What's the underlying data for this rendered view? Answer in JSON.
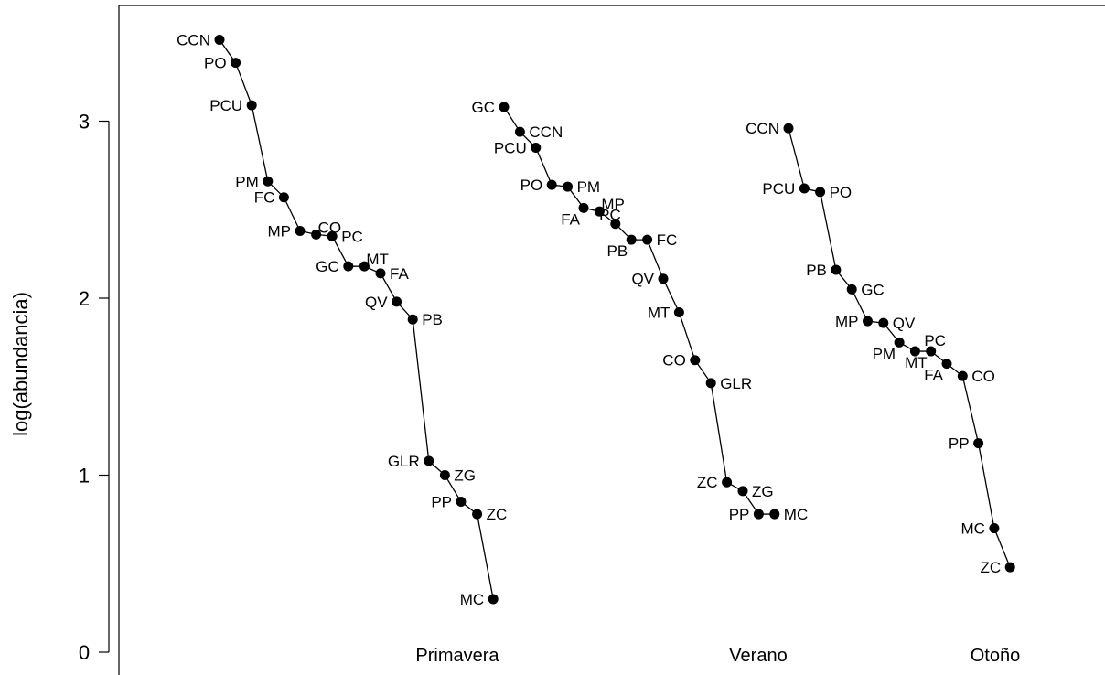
{
  "chart_data": {
    "type": "line",
    "title": "",
    "xlabel": "",
    "ylabel": "log(abundancia)",
    "ylim": [
      0,
      3.5
    ],
    "yticks": [
      0,
      1,
      2,
      3
    ],
    "grid": false,
    "markers": "filled-circle",
    "series": [
      {
        "name": "Primavera",
        "points": [
          {
            "label": "CCN",
            "y": 3.46
          },
          {
            "label": "PO",
            "y": 3.33
          },
          {
            "label": "PCU",
            "y": 3.09
          },
          {
            "label": "PM",
            "y": 2.66
          },
          {
            "label": "FC",
            "y": 2.57
          },
          {
            "label": "MP",
            "y": 2.38
          },
          {
            "label": "CO",
            "y": 2.36
          },
          {
            "label": "PC",
            "y": 2.35
          },
          {
            "label": "GC",
            "y": 2.18
          },
          {
            "label": "MT",
            "y": 2.18
          },
          {
            "label": "FA",
            "y": 2.14
          },
          {
            "label": "QV",
            "y": 1.98
          },
          {
            "label": "PB",
            "y": 1.88
          },
          {
            "label": "GLR",
            "y": 1.08
          },
          {
            "label": "ZG",
            "y": 1.0
          },
          {
            "label": "PP",
            "y": 0.85
          },
          {
            "label": "ZC",
            "y": 0.78
          },
          {
            "label": "MC",
            "y": 0.3
          }
        ]
      },
      {
        "name": "Verano",
        "points": [
          {
            "label": "GC",
            "y": 3.08
          },
          {
            "label": "CCN",
            "y": 2.94
          },
          {
            "label": "PCU",
            "y": 2.85
          },
          {
            "label": "PO",
            "y": 2.64
          },
          {
            "label": "PM",
            "y": 2.63
          },
          {
            "label": "FA",
            "y": 2.51
          },
          {
            "label": "MP",
            "y": 2.49
          },
          {
            "label": "PC",
            "y": 2.42
          },
          {
            "label": "PB",
            "y": 2.33
          },
          {
            "label": "FC",
            "y": 2.33
          },
          {
            "label": "QV",
            "y": 2.11
          },
          {
            "label": "MT",
            "y": 1.92
          },
          {
            "label": "CO",
            "y": 1.65
          },
          {
            "label": "GLR",
            "y": 1.52
          },
          {
            "label": "ZC",
            "y": 0.96
          },
          {
            "label": "ZG",
            "y": 0.91
          },
          {
            "label": "PP",
            "y": 0.78
          },
          {
            "label": "MC",
            "y": 0.78
          }
        ]
      },
      {
        "name": "Otoño",
        "points": [
          {
            "label": "CCN",
            "y": 2.96
          },
          {
            "label": "PCU",
            "y": 2.62
          },
          {
            "label": "PO",
            "y": 2.6
          },
          {
            "label": "PB",
            "y": 2.16
          },
          {
            "label": "GC",
            "y": 2.05
          },
          {
            "label": "MP",
            "y": 1.87
          },
          {
            "label": "QV",
            "y": 1.86
          },
          {
            "label": "PM",
            "y": 1.75
          },
          {
            "label": "PC",
            "y": 1.7
          },
          {
            "label": "MT",
            "y": 1.7
          },
          {
            "label": "FA",
            "y": 1.63
          },
          {
            "label": "CO",
            "y": 1.56
          },
          {
            "label": "PP",
            "y": 1.18
          },
          {
            "label": "MC",
            "y": 0.7
          },
          {
            "label": "ZC",
            "y": 0.48
          }
        ]
      }
    ]
  }
}
